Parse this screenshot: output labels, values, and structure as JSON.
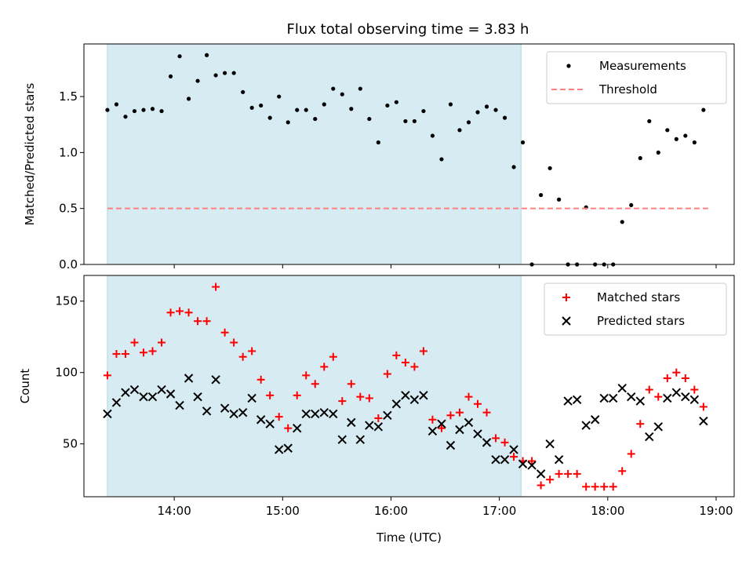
{
  "chart_data": [
    {
      "type": "scatter",
      "panel": "top",
      "title": "Flux total observing time = 3.83 h",
      "ylabel": "Matched/Predicted stars",
      "xlabel": "",
      "x_range": [
        "13:10",
        "19:10"
      ],
      "ylim": [
        0,
        1.97
      ],
      "yticks": [
        0.0,
        0.5,
        1.0,
        1.5
      ],
      "ytick_labels": [
        "0.0",
        "0.5",
        "1.0",
        "1.5"
      ],
      "xticks": [
        "14:00",
        "15:00",
        "16:00",
        "17:00",
        "18:00",
        "19:00"
      ],
      "shaded_interval": {
        "start": "13:23",
        "end": "17:12",
        "color": "#add8e6"
      },
      "legend": {
        "placement": "top-right",
        "entries": [
          "Measurements",
          "Threshold"
        ]
      },
      "series": [
        {
          "name": "Measurements",
          "kind": "points",
          "color": "#000000",
          "x": [
            "13:23",
            "13:28",
            "13:33",
            "13:38",
            "13:43",
            "13:48",
            "13:53",
            "13:58",
            "14:03",
            "14:08",
            "14:13",
            "14:18",
            "14:23",
            "14:28",
            "14:33",
            "14:38",
            "14:43",
            "14:48",
            "14:53",
            "14:58",
            "15:03",
            "15:08",
            "15:13",
            "15:18",
            "15:23",
            "15:28",
            "15:33",
            "15:38",
            "15:43",
            "15:48",
            "15:53",
            "15:58",
            "16:03",
            "16:08",
            "16:13",
            "16:18",
            "16:23",
            "16:28",
            "16:33",
            "16:38",
            "16:43",
            "16:48",
            "16:53",
            "16:58",
            "17:03",
            "17:08",
            "17:13",
            "17:18",
            "17:23",
            "17:28",
            "17:33",
            "17:38",
            "17:43",
            "17:48",
            "17:53",
            "17:58",
            "18:03",
            "18:08",
            "18:13",
            "18:18",
            "18:23",
            "18:28",
            "18:33",
            "18:38",
            "18:43",
            "18:48",
            "18:53"
          ],
          "y": [
            1.38,
            1.43,
            1.32,
            1.37,
            1.38,
            1.39,
            1.37,
            1.68,
            1.86,
            1.48,
            1.64,
            1.87,
            1.69,
            1.71,
            1.71,
            1.54,
            1.4,
            1.42,
            1.31,
            1.5,
            1.27,
            1.38,
            1.38,
            1.3,
            1.43,
            1.57,
            1.52,
            1.39,
            1.57,
            1.3,
            1.09,
            1.42,
            1.45,
            1.28,
            1.28,
            1.37,
            1.15,
            0.94,
            1.43,
            1.2,
            1.27,
            1.36,
            1.41,
            1.38,
            1.31,
            0.87,
            1.09,
            0.0,
            0.62,
            0.86,
            0.58,
            0.0,
            0.0,
            0.51,
            0.0,
            0.0,
            0.0,
            0.38,
            0.53,
            0.95,
            1.28,
            1.0,
            1.2,
            1.12,
            1.15,
            1.09,
            1.38
          ]
        },
        {
          "name": "Threshold",
          "kind": "dashed-line",
          "color": "#ff7f7f",
          "x": [
            "13:23",
            "18:57"
          ],
          "y": [
            0.5,
            0.5
          ]
        }
      ]
    },
    {
      "type": "scatter",
      "panel": "bottom",
      "title": "",
      "ylabel": "Count",
      "xlabel": "Time (UTC)",
      "x_range": [
        "13:10",
        "19:10"
      ],
      "ylim": [
        13,
        168
      ],
      "yticks": [
        50,
        100,
        150
      ],
      "ytick_labels": [
        "50",
        "100",
        "150"
      ],
      "xticks": [
        "14:00",
        "15:00",
        "16:00",
        "17:00",
        "18:00",
        "19:00"
      ],
      "xtick_labels": [
        "14:00",
        "15:00",
        "16:00",
        "17:00",
        "18:00",
        "19:00"
      ],
      "shaded_interval": {
        "start": "13:23",
        "end": "17:12",
        "color": "#add8e6"
      },
      "legend": {
        "placement": "top-right",
        "entries": [
          "Matched stars",
          "Predicted stars"
        ]
      },
      "series": [
        {
          "name": "Matched stars",
          "marker": "plus",
          "color": "#ff0000",
          "x": [
            "13:23",
            "13:28",
            "13:33",
            "13:38",
            "13:43",
            "13:48",
            "13:53",
            "13:58",
            "14:03",
            "14:08",
            "14:13",
            "14:18",
            "14:23",
            "14:28",
            "14:33",
            "14:38",
            "14:43",
            "14:48",
            "14:53",
            "14:58",
            "15:03",
            "15:08",
            "15:13",
            "15:18",
            "15:23",
            "15:28",
            "15:33",
            "15:38",
            "15:43",
            "15:48",
            "15:53",
            "15:58",
            "16:03",
            "16:08",
            "16:13",
            "16:18",
            "16:23",
            "16:28",
            "16:33",
            "16:38",
            "16:43",
            "16:48",
            "16:53",
            "16:58",
            "17:03",
            "17:08",
            "17:13",
            "17:18",
            "17:23",
            "17:28",
            "17:33",
            "17:38",
            "17:43",
            "17:48",
            "17:53",
            "17:58",
            "18:03",
            "18:08",
            "18:13",
            "18:18",
            "18:23",
            "18:28",
            "18:33",
            "18:38",
            "18:43",
            "18:48",
            "18:53"
          ],
          "y": [
            98,
            113,
            113,
            121,
            114,
            115,
            121,
            142,
            143,
            142,
            136,
            136,
            160,
            128,
            121,
            111,
            115,
            95,
            84,
            69,
            61,
            84,
            98,
            92,
            104,
            111,
            80,
            92,
            83,
            82,
            68,
            99,
            112,
            107,
            104,
            115,
            67,
            61,
            70,
            72,
            83,
            78,
            72,
            54,
            51,
            41,
            38,
            38,
            21,
            25,
            29,
            29,
            29,
            20,
            20,
            20,
            20,
            31,
            43,
            64,
            88,
            83,
            96,
            100,
            96,
            88,
            76
          ]
        },
        {
          "name": "Predicted stars",
          "marker": "x",
          "color": "#000000",
          "x": [
            "13:23",
            "13:28",
            "13:33",
            "13:38",
            "13:43",
            "13:48",
            "13:53",
            "13:58",
            "14:03",
            "14:08",
            "14:13",
            "14:18",
            "14:23",
            "14:28",
            "14:33",
            "14:38",
            "14:43",
            "14:48",
            "14:53",
            "14:58",
            "15:03",
            "15:08",
            "15:13",
            "15:18",
            "15:23",
            "15:28",
            "15:33",
            "15:38",
            "15:43",
            "15:48",
            "15:53",
            "15:58",
            "16:03",
            "16:08",
            "16:13",
            "16:18",
            "16:23",
            "16:28",
            "16:33",
            "16:38",
            "16:43",
            "16:48",
            "16:53",
            "16:58",
            "17:03",
            "17:08",
            "17:13",
            "17:18",
            "17:23",
            "17:28",
            "17:33",
            "17:38",
            "17:43",
            "17:48",
            "17:53",
            "17:58",
            "18:03",
            "18:08",
            "18:13",
            "18:18",
            "18:23",
            "18:28",
            "18:33",
            "18:38",
            "18:43",
            "18:48",
            "18:53"
          ],
          "y": [
            71,
            79,
            86,
            88,
            83,
            83,
            88,
            85,
            77,
            96,
            83,
            73,
            95,
            75,
            71,
            72,
            82,
            67,
            64,
            46,
            47,
            61,
            71,
            71,
            72,
            71,
            53,
            65,
            53,
            63,
            62,
            70,
            78,
            84,
            81,
            84,
            59,
            64,
            49,
            60,
            65,
            57,
            51,
            39,
            39,
            46,
            36,
            35,
            29,
            50,
            39,
            80,
            81,
            63,
            67,
            82,
            82,
            89,
            83,
            80,
            55,
            62,
            82,
            86,
            83,
            81,
            66
          ]
        }
      ]
    }
  ]
}
